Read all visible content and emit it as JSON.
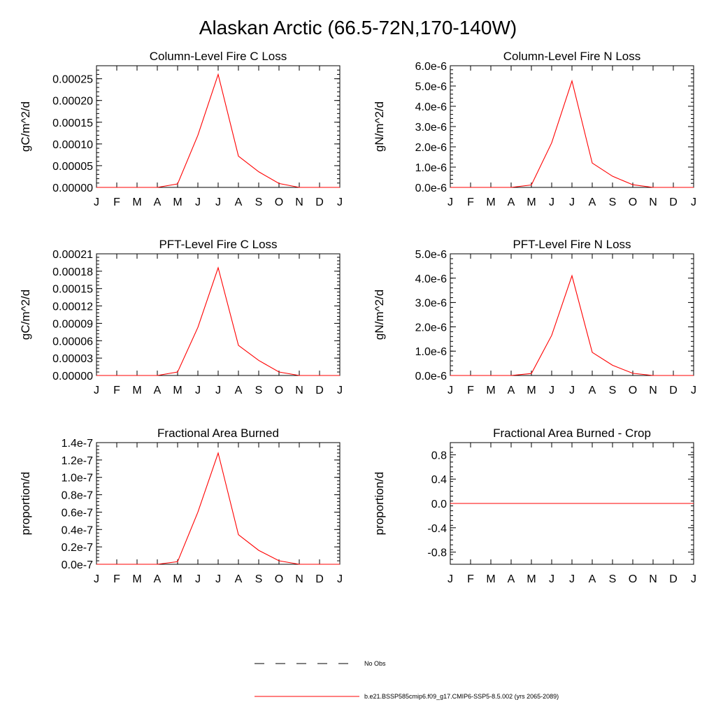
{
  "title": "Alaskan Arctic (66.5-72N,170-140W)",
  "months": [
    "J",
    "F",
    "M",
    "A",
    "M",
    "J",
    "J",
    "A",
    "S",
    "O",
    "N",
    "D",
    "J"
  ],
  "legend": {
    "items": [
      {
        "label": "No Obs",
        "color": "#000000",
        "dash": true
      },
      {
        "label": "b.e21.BSSP585cmip6.f09_g17.CMIP6-SSP5-8.5.002 (yrs 2065-2089)",
        "color": "#ff0000",
        "dash": false
      }
    ]
  },
  "chart_data": [
    {
      "type": "line",
      "title": "Column-Level Fire C Loss",
      "ylabel": "gC/m^2/d",
      "ylim": [
        0,
        0.00028
      ],
      "yticks": [
        0,
        5e-05,
        0.0001,
        0.00015,
        0.0002,
        0.00025
      ],
      "ytick_labels": [
        "0.00000",
        "0.00005",
        "0.00010",
        "0.00015",
        "0.00020",
        "0.00025"
      ],
      "series": [
        {
          "color": "#ff0000",
          "values": [
            0,
            0,
            0,
            0,
            8e-06,
            0.00012,
            0.00026,
            7.2e-05,
            3.6e-05,
            9e-06,
            0,
            0,
            0
          ]
        }
      ]
    },
    {
      "type": "line",
      "title": "Column-Level Fire N Loss",
      "ylabel": "gN/m^2/d",
      "ylim": [
        0,
        6e-06
      ],
      "yticks": [
        0,
        1e-06,
        2e-06,
        3e-06,
        4e-06,
        5e-06,
        6e-06
      ],
      "ytick_labels": [
        "0.0e-6",
        "1.0e-6",
        "2.0e-6",
        "3.0e-6",
        "4.0e-6",
        "5.0e-6",
        "6.0e-6"
      ],
      "series": [
        {
          "color": "#ff0000",
          "values": [
            0,
            0,
            0,
            0,
            1.2e-07,
            2.2e-06,
            5.25e-06,
            1.2e-06,
            5.5e-07,
            1.3e-07,
            0,
            0,
            0
          ]
        }
      ]
    },
    {
      "type": "line",
      "title": "PFT-Level Fire C Loss",
      "ylabel": "gC/m^2/d",
      "ylim": [
        0,
        0.00021
      ],
      "yticks": [
        0,
        3e-05,
        6e-05,
        9e-05,
        0.00012,
        0.00015,
        0.00018,
        0.00021
      ],
      "ytick_labels": [
        "0.00000",
        "0.00003",
        "0.00006",
        "0.00009",
        "0.00012",
        "0.00015",
        "0.00018",
        "0.00021"
      ],
      "series": [
        {
          "color": "#ff0000",
          "values": [
            0,
            0,
            0,
            0,
            6e-06,
            8.3e-05,
            0.000186,
            5.2e-05,
            2.6e-05,
            6e-06,
            0,
            0,
            0
          ]
        }
      ]
    },
    {
      "type": "line",
      "title": "PFT-Level Fire N Loss",
      "ylabel": "gN/m^2/d",
      "ylim": [
        0,
        5e-06
      ],
      "yticks": [
        0,
        1e-06,
        2e-06,
        3e-06,
        4e-06,
        5e-06
      ],
      "ytick_labels": [
        "0.0e-6",
        "1.0e-6",
        "2.0e-6",
        "3.0e-6",
        "4.0e-6",
        "5.0e-6"
      ],
      "series": [
        {
          "color": "#ff0000",
          "values": [
            0,
            0,
            0,
            0,
            8e-08,
            1.65e-06,
            4.1e-06,
            9.5e-07,
            4.2e-07,
            9e-08,
            0,
            0,
            0
          ]
        }
      ]
    },
    {
      "type": "line",
      "title": "Fractional Area Burned",
      "ylabel": "proportion/d",
      "ylim": [
        0,
        1.4e-07
      ],
      "yticks": [
        0,
        2e-08,
        4e-08,
        6e-08,
        8e-08,
        1e-07,
        1.2e-07,
        1.4e-07
      ],
      "ytick_labels": [
        "0.0e-7",
        "0.2e-7",
        "0.4e-7",
        "0.6e-7",
        "0.8e-7",
        "1.0e-7",
        "1.2e-7",
        "1.4e-7"
      ],
      "series": [
        {
          "color": "#ff0000",
          "values": [
            0,
            0,
            0,
            0,
            3e-09,
            6e-08,
            1.28e-07,
            3.4e-08,
            1.6e-08,
            4e-09,
            0,
            0,
            0
          ]
        }
      ]
    },
    {
      "type": "line",
      "title": "Fractional Area Burned - Crop",
      "ylabel": "proportion/d",
      "ylim": [
        -1,
        1
      ],
      "yticks": [
        -0.8,
        -0.4,
        0,
        0.4,
        0.8
      ],
      "ytick_labels": [
        "-0.8",
        "-0.4",
        "0.0",
        "0.4",
        "0.8"
      ],
      "series": [
        {
          "color": "#ff0000",
          "values": [
            0,
            0,
            0,
            0,
            0,
            0,
            0,
            0,
            0,
            0,
            0,
            0,
            0
          ]
        }
      ]
    }
  ]
}
